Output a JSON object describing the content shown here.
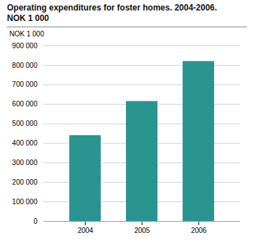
{
  "chart_data": {
    "type": "bar",
    "title": "Operating expenditures for foster homes. 2004-2006.",
    "subtitle": "NOK 1 000",
    "ylabel": "NOK 1 000",
    "categories": [
      "2004",
      "2005",
      "2006"
    ],
    "values": [
      440000,
      615000,
      820000
    ],
    "color": "#2a9490",
    "ylim": [
      0,
      900000
    ],
    "yticks": [
      0,
      {
        "value": 100000,
        "label": "100 000"
      },
      {
        "value": 200000,
        "label": "200 000"
      },
      {
        "value": 300000,
        "label": "300 000"
      },
      {
        "value": 400000,
        "label": "400 000"
      },
      {
        "value": 500000,
        "label": "500 000"
      },
      {
        "value": 600000,
        "label": "600 000"
      },
      {
        "value": 700000,
        "label": "700 000"
      },
      {
        "value": 800000,
        "label": "800 000"
      },
      {
        "value": 900000,
        "label": "900 000"
      }
    ],
    "grid": true
  }
}
